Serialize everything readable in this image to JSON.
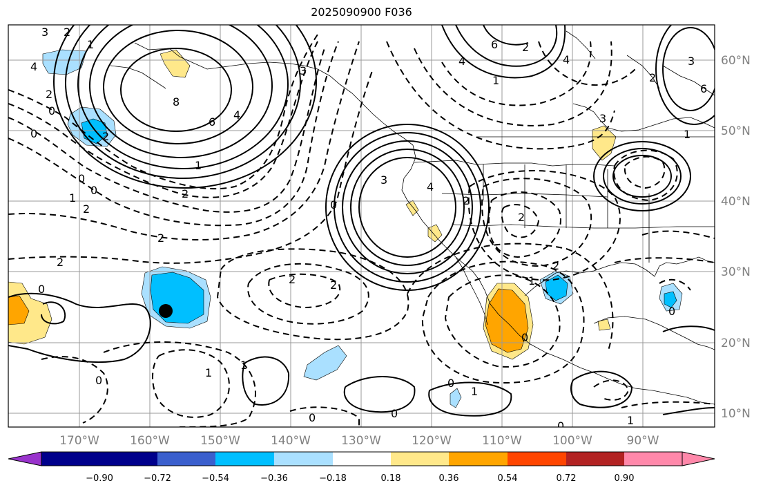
{
  "title": "2025090900 F036",
  "colors": {
    "grid": "#999999",
    "contour": "#000000",
    "station": "#000000"
  },
  "lon_ticks": [
    "170°W",
    "160°W",
    "150°W",
    "140°W",
    "130°W",
    "120°W",
    "110°W",
    "100°W",
    "90°W"
  ],
  "lat_ticks": [
    "60°N",
    "50°N",
    "40°N",
    "30°N",
    "20°N",
    "10°N"
  ],
  "colorbar": {
    "colors": [
      "#9933cc",
      "#00008b",
      "#3a5fcd",
      "#00bfff",
      "#aae0ff",
      "#ffffff",
      "#ffe88a",
      "#ffa500",
      "#ff4500",
      "#b22222",
      "#ff88aa"
    ],
    "labels": [
      "−0.90",
      "−0.72",
      "−0.54",
      "−0.36",
      "−0.18",
      "0.18",
      "0.36",
      "0.54",
      "0.72",
      "0.90"
    ]
  },
  "contour_labels": [
    "3",
    "2",
    "4",
    "2",
    "0",
    "0",
    "1",
    "0",
    "1",
    "2",
    "2",
    "2",
    "8",
    "6",
    "4",
    "1",
    "2",
    "0",
    "2",
    "2",
    "3",
    "4",
    "2",
    "3",
    "0",
    "4",
    "6",
    "2",
    "1",
    "4",
    "2",
    "3",
    "3",
    "6",
    "1",
    "2",
    "2",
    "1",
    "2",
    "0",
    "0",
    "1",
    "0",
    "1",
    "0",
    "0",
    "0",
    "1",
    "0",
    "0",
    "1"
  ]
}
